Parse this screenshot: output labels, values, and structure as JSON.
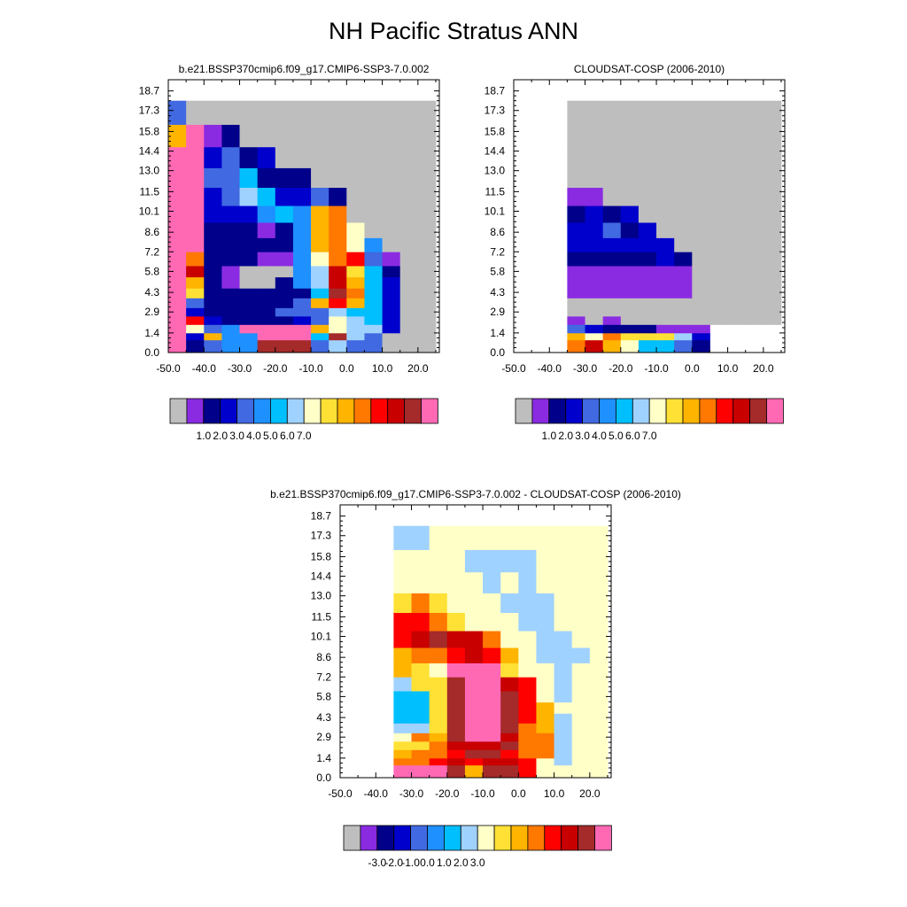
{
  "title": "NH Pacific Stratus ANN",
  "colorbar": {
    "colors": [
      "#bebebe",
      "#8a2be2",
      "#00008b",
      "#0000cd",
      "#4169e1",
      "#1e90ff",
      "#00bfff",
      "#a0d2ff",
      "#ffffc8",
      "#ffe135",
      "#ffb400",
      "#ff7800",
      "#ff0000",
      "#c80000",
      "#a52a2a",
      "#ff69b4"
    ],
    "labels_abs": [
      "1.0",
      "2.0",
      "3.0",
      "4.0",
      "5.0",
      "6.0",
      "7.0"
    ],
    "labels_diff": [
      "-3.0",
      "-2.0",
      "-1.0",
      "0.0",
      "1.0",
      "2.0",
      "3.0"
    ]
  },
  "chart_data": [
    {
      "type": "heatmap",
      "title": "b.e21.BSSP370cmip6.f09_g17.CMIP6-SSP3-7.0.002",
      "x_ticks": [
        "-50.0",
        "-40.0",
        "-30.0",
        "-20.0",
        "-10.0",
        "0.0",
        "10.0",
        "20.0"
      ],
      "y_ticks": [
        "0.0",
        "1.4",
        "2.9",
        "4.3",
        "5.8",
        "7.2",
        "8.6",
        "10.1",
        "11.5",
        "13.0",
        "14.4",
        "15.8",
        "17.3",
        "18.7"
      ],
      "xlim": [
        -50,
        26
      ],
      "ylim": [
        0,
        19.5
      ],
      "x_edges": [
        -50,
        -45,
        -40,
        -35,
        -30,
        -25,
        -20,
        -15,
        -10,
        -5,
        0,
        5,
        10,
        15,
        20,
        25
      ],
      "y_edges": [
        0,
        0.9,
        1.4,
        2.0,
        2.6,
        3.2,
        3.9,
        4.6,
        5.4,
        6.2,
        7.2,
        8.2,
        9.3,
        10.5,
        11.8,
        13.2,
        14.7,
        16.3,
        18.0
      ],
      "values": [
        [
          15,
          2,
          4,
          5,
          5,
          14,
          14,
          14,
          4,
          7,
          4,
          4,
          0,
          0,
          0
        ],
        [
          15,
          3,
          10,
          5,
          5,
          15,
          15,
          15,
          6,
          14,
          7,
          4,
          0,
          0,
          0
        ],
        [
          15,
          8,
          4,
          5,
          15,
          15,
          15,
          15,
          10,
          8,
          7,
          7,
          3,
          0,
          0
        ],
        [
          15,
          12,
          3,
          2,
          2,
          2,
          2,
          3,
          4,
          8,
          7,
          6,
          3,
          0,
          0
        ],
        [
          15,
          3,
          2,
          2,
          2,
          2,
          4,
          4,
          4,
          7,
          6,
          6,
          3,
          0,
          0
        ],
        [
          15,
          4,
          2,
          2,
          2,
          2,
          2,
          4,
          10,
          12,
          10,
          6,
          3,
          0,
          0
        ],
        [
          15,
          9,
          2,
          2,
          2,
          2,
          2,
          2,
          6,
          14,
          11,
          6,
          3,
          0,
          0
        ],
        [
          15,
          10,
          2,
          1,
          0,
          0,
          2,
          5,
          7,
          13,
          10,
          6,
          3,
          0,
          0
        ],
        [
          15,
          13,
          2,
          1,
          0,
          0,
          0,
          5,
          7,
          13,
          9,
          6,
          2,
          0,
          0
        ],
        [
          15,
          11,
          2,
          2,
          2,
          1,
          1,
          5,
          8,
          11,
          12,
          4,
          1,
          0,
          0
        ],
        [
          15,
          15,
          2,
          2,
          2,
          2,
          2,
          5,
          10,
          11,
          8,
          5,
          0,
          0,
          0
        ],
        [
          15,
          15,
          2,
          2,
          2,
          1,
          2,
          5,
          10,
          11,
          8,
          0,
          0,
          0,
          0
        ],
        [
          15,
          15,
          3,
          3,
          3,
          5,
          6,
          5,
          10,
          11,
          0,
          0,
          0,
          0,
          0
        ],
        [
          15,
          15,
          3,
          4,
          7,
          6,
          3,
          3,
          4,
          2,
          0,
          0,
          0,
          0,
          0
        ],
        [
          15,
          15,
          4,
          4,
          6,
          2,
          2,
          2,
          0,
          0,
          0,
          0,
          0,
          0,
          0
        ],
        [
          15,
          15,
          3,
          4,
          2,
          3,
          0,
          0,
          0,
          0,
          0,
          0,
          0,
          0,
          0
        ],
        [
          10,
          15,
          1,
          2,
          0,
          0,
          0,
          0,
          0,
          0,
          0,
          0,
          0,
          0,
          0
        ],
        [
          4,
          0,
          0,
          0,
          0,
          0,
          0,
          0,
          0,
          0,
          0,
          0,
          0,
          0,
          0
        ]
      ]
    },
    {
      "type": "heatmap",
      "title": "CLOUDSAT-COSP (2006-2010)",
      "x_ticks": [
        "-50.0",
        "-40.0",
        "-30.0",
        "-20.0",
        "-10.0",
        "0.0",
        "10.0",
        "20.0"
      ],
      "y_ticks": [
        "0.0",
        "1.4",
        "2.9",
        "4.3",
        "5.8",
        "7.2",
        "8.6",
        "10.1",
        "11.5",
        "13.0",
        "14.4",
        "15.8",
        "17.3",
        "18.7"
      ],
      "xlim": [
        -50,
        26
      ],
      "ylim": [
        0,
        19.5
      ],
      "x_edges": [
        -50,
        -45,
        -40,
        -35,
        -30,
        -25,
        -20,
        -15,
        -10,
        -5,
        0,
        5,
        10,
        15,
        20,
        25
      ],
      "y_edges": [
        0,
        0.9,
        1.4,
        2.0,
        2.6,
        3.2,
        3.9,
        4.6,
        5.4,
        6.2,
        7.2,
        8.2,
        9.3,
        10.5,
        11.8,
        13.2,
        14.7,
        16.3,
        18.0
      ],
      "values": [
        [
          null,
          null,
          null,
          11,
          13,
          10,
          8,
          6,
          6,
          4,
          2,
          null,
          null,
          null,
          null
        ],
        [
          null,
          null,
          null,
          10,
          8,
          11,
          9,
          9,
          9,
          7,
          3,
          null,
          null,
          null,
          null
        ],
        [
          null,
          null,
          null,
          4,
          3,
          2,
          2,
          2,
          1,
          1,
          1,
          null,
          null,
          null,
          null
        ],
        [
          null,
          null,
          null,
          1,
          0,
          1,
          0,
          0,
          0,
          0,
          0,
          0,
          0,
          0,
          0
        ],
        [
          null,
          null,
          null,
          0,
          0,
          0,
          0,
          0,
          0,
          0,
          0,
          0,
          0,
          0,
          0
        ],
        [
          null,
          null,
          null,
          0,
          0,
          0,
          0,
          0,
          0,
          0,
          0,
          0,
          0,
          0,
          0
        ],
        [
          null,
          null,
          null,
          1,
          1,
          1,
          1,
          1,
          1,
          1,
          0,
          0,
          0,
          0,
          0
        ],
        [
          null,
          null,
          null,
          1,
          1,
          1,
          1,
          1,
          1,
          1,
          0,
          0,
          0,
          0,
          0
        ],
        [
          null,
          null,
          null,
          1,
          1,
          1,
          1,
          1,
          1,
          1,
          0,
          0,
          0,
          0,
          0
        ],
        [
          null,
          null,
          null,
          2,
          2,
          2,
          2,
          2,
          3,
          2,
          0,
          0,
          0,
          0,
          0
        ],
        [
          null,
          null,
          null,
          3,
          3,
          3,
          3,
          3,
          3,
          0,
          0,
          0,
          0,
          0,
          0
        ],
        [
          null,
          null,
          null,
          3,
          3,
          4,
          2,
          3,
          0,
          0,
          0,
          0,
          0,
          0,
          0
        ],
        [
          null,
          null,
          null,
          2,
          3,
          2,
          3,
          0,
          0,
          0,
          0,
          0,
          0,
          0,
          0
        ],
        [
          null,
          null,
          null,
          1,
          1,
          0,
          0,
          0,
          0,
          0,
          0,
          0,
          0,
          0,
          0
        ],
        [
          null,
          null,
          null,
          0,
          0,
          0,
          0,
          0,
          0,
          0,
          0,
          0,
          0,
          0,
          0
        ],
        [
          null,
          null,
          null,
          0,
          0,
          0,
          0,
          0,
          0,
          0,
          0,
          0,
          0,
          0,
          0
        ],
        [
          null,
          null,
          null,
          0,
          0,
          0,
          0,
          0,
          0,
          0,
          0,
          0,
          0,
          0,
          0
        ],
        [
          null,
          null,
          null,
          0,
          0,
          0,
          0,
          0,
          0,
          0,
          0,
          0,
          0,
          0,
          0
        ]
      ]
    },
    {
      "type": "heatmap",
      "title": "b.e21.BSSP370cmip6.f09_g17.CMIP6-SSP3-7.0.002 - CLOUDSAT-COSP (2006-2010)",
      "x_ticks": [
        "-50.0",
        "-40.0",
        "-30.0",
        "-20.0",
        "-10.0",
        "0.0",
        "10.0",
        "20.0"
      ],
      "y_ticks": [
        "0.0",
        "1.4",
        "2.9",
        "4.3",
        "5.8",
        "7.2",
        "8.6",
        "10.1",
        "11.5",
        "13.0",
        "14.4",
        "15.8",
        "17.3",
        "18.7"
      ],
      "xlim": [
        -50,
        26
      ],
      "ylim": [
        0,
        19.5
      ],
      "x_edges": [
        -50,
        -45,
        -40,
        -35,
        -30,
        -25,
        -20,
        -15,
        -10,
        -5,
        0,
        5,
        10,
        15,
        20,
        25
      ],
      "y_edges": [
        0,
        0.9,
        1.4,
        2.0,
        2.6,
        3.2,
        3.9,
        4.6,
        5.4,
        6.2,
        7.2,
        8.2,
        9.3,
        10.5,
        11.8,
        13.2,
        14.7,
        16.3,
        18.0
      ],
      "values": [
        [
          null,
          null,
          null,
          15,
          15,
          15,
          14,
          10,
          14,
          14,
          12,
          8,
          8,
          8,
          8
        ],
        [
          null,
          null,
          null,
          11,
          11,
          12,
          13,
          12,
          13,
          13,
          12,
          8,
          7,
          8,
          8
        ],
        [
          null,
          null,
          null,
          10,
          11,
          11,
          12,
          14,
          14,
          12,
          11,
          11,
          7,
          8,
          8
        ],
        [
          null,
          null,
          null,
          9,
          9,
          11,
          13,
          13,
          13,
          14,
          11,
          11,
          7,
          8,
          8
        ],
        [
          null,
          null,
          null,
          8,
          11,
          10,
          14,
          15,
          15,
          13,
          11,
          11,
          7,
          8,
          8
        ],
        [
          null,
          null,
          null,
          7,
          7,
          9,
          14,
          15,
          15,
          14,
          11,
          10,
          7,
          8,
          8
        ],
        [
          null,
          null,
          null,
          6,
          6,
          9,
          14,
          15,
          15,
          14,
          12,
          10,
          7,
          8,
          8
        ],
        [
          null,
          null,
          null,
          6,
          6,
          9,
          14,
          15,
          15,
          14,
          12,
          10,
          8,
          8,
          8
        ],
        [
          null,
          null,
          null,
          6,
          6,
          9,
          14,
          15,
          15,
          14,
          12,
          8,
          7,
          8,
          8
        ],
        [
          null,
          null,
          null,
          7,
          9,
          9,
          14,
          15,
          15,
          13,
          12,
          8,
          7,
          8,
          8
        ],
        [
          null,
          null,
          null,
          10,
          9,
          8,
          15,
          15,
          15,
          9,
          8,
          8,
          7,
          8,
          8
        ],
        [
          null,
          null,
          null,
          10,
          11,
          11,
          12,
          13,
          12,
          10,
          8,
          7,
          7,
          7,
          8
        ],
        [
          null,
          null,
          null,
          12,
          13,
          14,
          13,
          13,
          11,
          8,
          8,
          7,
          7,
          8,
          8
        ],
        [
          null,
          null,
          null,
          12,
          12,
          11,
          9,
          8,
          8,
          8,
          7,
          7,
          8,
          8,
          8
        ],
        [
          null,
          null,
          null,
          9,
          11,
          9,
          8,
          8,
          8,
          7,
          7,
          7,
          8,
          8,
          8
        ],
        [
          null,
          null,
          null,
          8,
          8,
          8,
          8,
          8,
          7,
          8,
          7,
          8,
          8,
          8,
          8
        ],
        [
          null,
          null,
          null,
          8,
          8,
          8,
          8,
          7,
          7,
          7,
          7,
          8,
          8,
          8,
          8
        ],
        [
          null,
          null,
          null,
          7,
          7,
          8,
          8,
          8,
          8,
          8,
          8,
          8,
          8,
          8,
          8
        ]
      ]
    }
  ]
}
